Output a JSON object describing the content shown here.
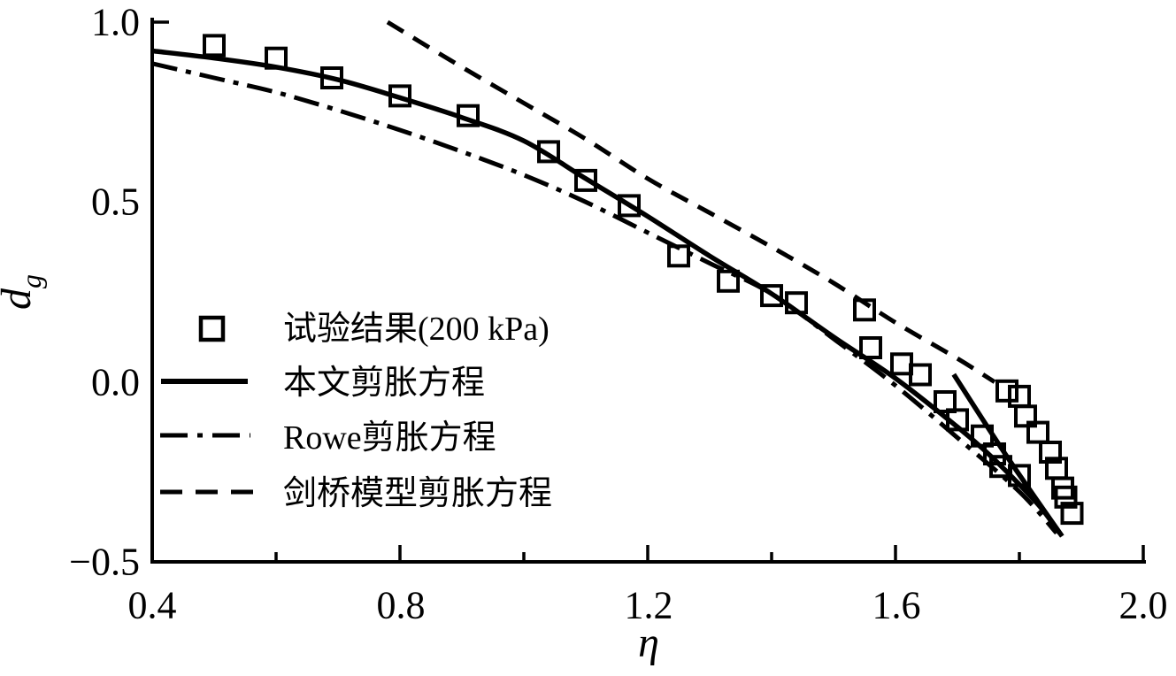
{
  "figure": {
    "background_color": "#ffffff",
    "ink_color": "#000000"
  },
  "axes": {
    "x": {
      "label": "η",
      "range": [
        0.4,
        2.0
      ],
      "major_ticks": [
        0.4,
        0.8,
        1.2,
        1.6,
        2.0
      ],
      "major_tick_labels": [
        "0.4",
        "0.8",
        "1.2",
        "1.6",
        "2.0"
      ],
      "minor_ticks": [
        0.6,
        1.0,
        1.4,
        1.8
      ]
    },
    "y": {
      "label": "d",
      "label_subscript": "g",
      "range": [
        -0.5,
        1.0
      ],
      "major_ticks": [
        1.0,
        0.5,
        0.0,
        -0.5
      ],
      "major_tick_labels": [
        "1.0",
        "0.5",
        "0.0",
        "−0.5"
      ]
    }
  },
  "legend": {
    "items": [
      {
        "label": "试验结果(200 kPa)",
        "marker": "open-square"
      },
      {
        "label": "本文剪胀方程",
        "marker": "solid-line"
      },
      {
        "label": "Rowe剪胀方程",
        "marker": "dashdot-line"
      },
      {
        "label": "剑桥模型剪胀方程",
        "marker": "dashed-line"
      }
    ]
  },
  "chart_data": {
    "type": "scatter",
    "title": "",
    "xlabel": "η",
    "ylabel": "d_g",
    "xlim": [
      0.4,
      2.0
    ],
    "ylim": [
      -0.5,
      1.0
    ],
    "grid": false,
    "legend_position": "inside-left-middle",
    "series": [
      {
        "name": "试验结果(200 kPa)",
        "type": "scatter",
        "marker": "open-square",
        "points": [
          [
            0.5,
            0.935
          ],
          [
            0.6,
            0.9
          ],
          [
            0.69,
            0.845
          ],
          [
            0.8,
            0.795
          ],
          [
            0.91,
            0.74
          ],
          [
            1.04,
            0.64
          ],
          [
            1.1,
            0.56
          ],
          [
            1.17,
            0.49
          ],
          [
            1.25,
            0.35
          ],
          [
            1.33,
            0.28
          ],
          [
            1.4,
            0.24
          ],
          [
            1.44,
            0.22
          ],
          [
            1.55,
            0.2
          ],
          [
            1.56,
            0.095
          ],
          [
            1.61,
            0.05
          ],
          [
            1.64,
            0.02
          ],
          [
            1.68,
            -0.055
          ],
          [
            1.7,
            -0.105
          ],
          [
            1.74,
            -0.15
          ],
          [
            1.76,
            -0.2
          ],
          [
            1.77,
            -0.235
          ],
          [
            1.8,
            -0.26
          ],
          [
            1.78,
            -0.025
          ],
          [
            1.8,
            -0.04
          ],
          [
            1.81,
            -0.095
          ],
          [
            1.83,
            -0.14
          ],
          [
            1.85,
            -0.195
          ],
          [
            1.86,
            -0.24
          ],
          [
            1.87,
            -0.295
          ],
          [
            1.875,
            -0.32
          ],
          [
            1.885,
            -0.365
          ]
        ]
      },
      {
        "name": "本文剪胀方程",
        "type": "line",
        "style": "solid",
        "branches": [
          [
            [
              0.4,
              0.92
            ],
            [
              0.5,
              0.9
            ],
            [
              0.6,
              0.875
            ],
            [
              0.7,
              0.84
            ],
            [
              0.8,
              0.79
            ],
            [
              0.9,
              0.735
            ],
            [
              1.0,
              0.67
            ],
            [
              1.1,
              0.565
            ],
            [
              1.2,
              0.46
            ],
            [
              1.3,
              0.35
            ],
            [
              1.4,
              0.245
            ],
            [
              1.5,
              0.125
            ],
            [
              1.6,
              0.01
            ],
            [
              1.7,
              -0.125
            ],
            [
              1.75,
              -0.2
            ],
            [
              1.8,
              -0.285
            ],
            [
              1.835,
              -0.35
            ],
            [
              1.865,
              -0.42
            ]
          ],
          [
            [
              1.694,
              0.021
            ],
            [
              1.779,
              -0.205
            ],
            [
              1.869,
              -0.429
            ]
          ]
        ]
      },
      {
        "name": "Rowe剪胀方程",
        "type": "line",
        "style": "dashdot",
        "branches": [
          [
            [
              0.4,
              0.885
            ],
            [
              0.5,
              0.845
            ],
            [
              0.6,
              0.805
            ],
            [
              0.7,
              0.755
            ],
            [
              0.8,
              0.7
            ],
            [
              0.9,
              0.64
            ],
            [
              1.0,
              0.575
            ],
            [
              1.1,
              0.5
            ],
            [
              1.2,
              0.415
            ],
            [
              1.3,
              0.33
            ],
            [
              1.4,
              0.245
            ],
            [
              1.5,
              0.12
            ],
            [
              1.6,
              -0.01
            ],
            [
              1.7,
              -0.155
            ],
            [
              1.8,
              -0.305
            ],
            [
              1.86,
              -0.42
            ]
          ]
        ]
      },
      {
        "name": "剑桥模型剪胀方程",
        "type": "line",
        "style": "dashed",
        "branches": [
          [
            [
              0.78,
              1.0
            ],
            [
              0.9,
              0.875
            ],
            [
              1.0,
              0.775
            ],
            [
              1.1,
              0.675
            ],
            [
              1.2,
              0.565
            ],
            [
              1.3,
              0.47
            ],
            [
              1.4,
              0.375
            ],
            [
              1.5,
              0.275
            ],
            [
              1.6,
              0.165
            ],
            [
              1.7,
              0.065
            ],
            [
              1.76,
              0.0
            ]
          ]
        ]
      }
    ]
  }
}
